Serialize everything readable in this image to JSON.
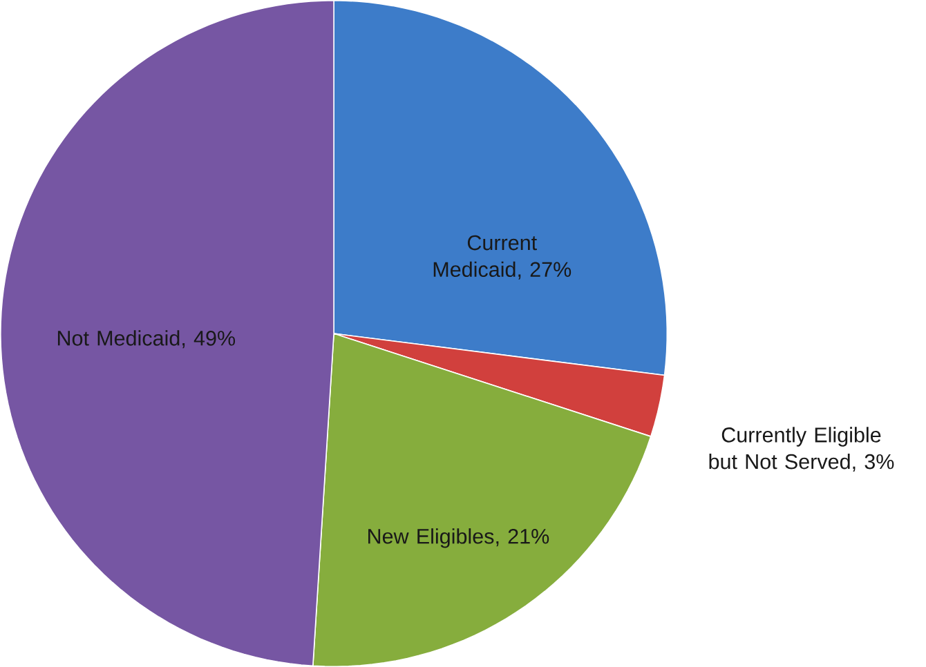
{
  "chart_data": {
    "type": "pie",
    "categories": [
      "Current Medicaid",
      "Currently Eligible but Not Served",
      "New Eligibles",
      "Not Medicaid"
    ],
    "values": [
      27,
      3,
      21,
      49
    ],
    "colors": [
      "#3d7cc9",
      "#d1403d",
      "#86ad3d",
      "#7656a3"
    ],
    "value_labels": [
      ", 27%",
      ", 3%",
      ", 21%",
      ", 49%"
    ]
  }
}
